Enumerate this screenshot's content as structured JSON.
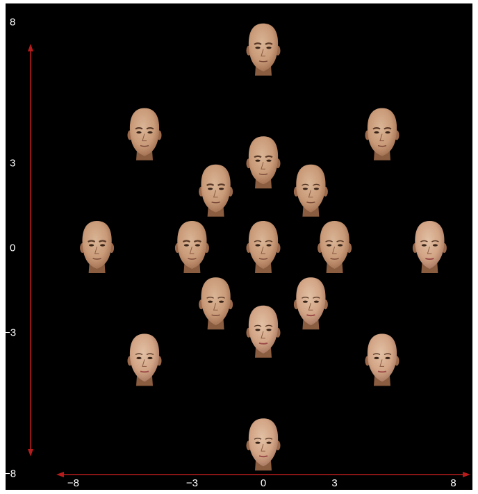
{
  "axes": {
    "color": "#b71c1c",
    "x": {
      "range": [
        -8,
        8
      ],
      "ticks": [
        {
          "value": -8,
          "label": "−8"
        },
        {
          "value": -3,
          "label": "−3"
        },
        {
          "value": 0,
          "label": "0"
        },
        {
          "value": 3,
          "label": "3"
        },
        {
          "value": 8,
          "label": "8"
        }
      ]
    },
    "y": {
      "range": [
        -8,
        8
      ],
      "ticks": [
        {
          "value": 8,
          "label": "8"
        },
        {
          "value": 3,
          "label": "3"
        },
        {
          "value": 0,
          "label": "0"
        },
        {
          "value": -3,
          "label": "−3"
        },
        {
          "value": -8,
          "label": "−8"
        }
      ]
    }
  },
  "faces": [
    {
      "x": 0,
      "y": 7,
      "kind": "male"
    },
    {
      "x": -5,
      "y": 4,
      "kind": "male"
    },
    {
      "x": 5,
      "y": 4,
      "kind": "male"
    },
    {
      "x": 0,
      "y": 3,
      "kind": "male"
    },
    {
      "x": -2,
      "y": 2,
      "kind": "male"
    },
    {
      "x": 2,
      "y": 2,
      "kind": "neutral"
    },
    {
      "x": -7,
      "y": 0,
      "kind": "male"
    },
    {
      "x": -3,
      "y": 0,
      "kind": "male"
    },
    {
      "x": 0,
      "y": 0,
      "kind": "neutral"
    },
    {
      "x": 3,
      "y": 0,
      "kind": "neutral"
    },
    {
      "x": 7,
      "y": 0,
      "kind": "female"
    },
    {
      "x": -2,
      "y": -2,
      "kind": "neutral"
    },
    {
      "x": 2,
      "y": -2,
      "kind": "female"
    },
    {
      "x": 0,
      "y": -3,
      "kind": "female"
    },
    {
      "x": -5,
      "y": -4,
      "kind": "female"
    },
    {
      "x": 5,
      "y": -4,
      "kind": "female"
    },
    {
      "x": 0,
      "y": -7,
      "kind": "female"
    }
  ],
  "colors": {
    "background": "#000000",
    "skin_light": "#d9b596",
    "skin_mid": "#c99a78",
    "skin_dark": "#9b6a4c"
  }
}
